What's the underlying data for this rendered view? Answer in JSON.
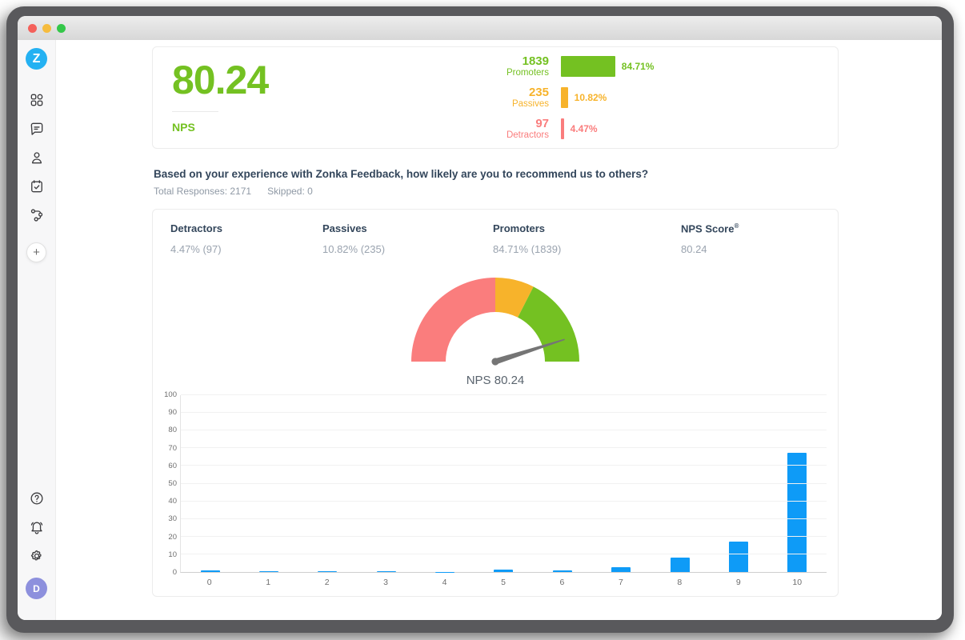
{
  "window": {
    "traffic_lights": {
      "close": "#f4605a",
      "minimize": "#f6bc3e",
      "zoom": "#34c749"
    }
  },
  "sidebar": {
    "logo_letter": "Z",
    "logo_color": "#24b1f2",
    "icons": [
      "apps-icon",
      "feedback-chat-icon",
      "contacts-icon",
      "surveys-icon",
      "workflow-icon",
      "add-icon",
      "help-icon",
      "notifications-icon",
      "settings-icon"
    ],
    "add_label": "+",
    "avatar_initial": "D",
    "avatar_color": "#8d90dd"
  },
  "summary_card": {
    "score": "80.24",
    "score_label": "NPS",
    "score_color": "#74c122",
    "distribution": [
      {
        "count": "1839",
        "label": "Promoters",
        "percent": "84.71%",
        "bar_pct": 84.71,
        "color": "#74c122"
      },
      {
        "count": "235",
        "label": "Passives",
        "percent": "10.82%",
        "bar_pct": 10.82,
        "color": "#f7b32b"
      },
      {
        "count": "97",
        "label": "Detractors",
        "percent": "4.47%",
        "bar_pct": 4.47,
        "color": "#fa7d7d"
      }
    ]
  },
  "question": {
    "text": "Based on your experience with Zonka Feedback, how likely are you to recommend us to others?",
    "total_responses": "Total Responses: 2171",
    "skipped": "Skipped: 0"
  },
  "report_card": {
    "stats": [
      {
        "label": "Detractors",
        "value": "4.47% (97)"
      },
      {
        "label": "Passives",
        "value": "10.82% (235)"
      },
      {
        "label": "Promoters",
        "value": "84.71% (1839)"
      },
      {
        "label": "NPS Score",
        "sup": "®",
        "value": "80.24"
      }
    ],
    "gauge": {
      "label": "NPS 80.24",
      "value": 80.24,
      "min": -100,
      "max": 100,
      "segments": [
        {
          "name": "detractors",
          "from": -100,
          "to": 0,
          "color": "#fa7d7d"
        },
        {
          "name": "passives",
          "from": 0,
          "to": 30,
          "color": "#f7b32b"
        },
        {
          "name": "promoters",
          "from": 30,
          "to": 100,
          "color": "#74c122"
        }
      ],
      "needle_color": "#757575"
    }
  },
  "chart_data": {
    "type": "bar",
    "title": "",
    "xlabel": "",
    "ylabel": "",
    "categories": [
      "0",
      "1",
      "2",
      "3",
      "4",
      "5",
      "6",
      "7",
      "8",
      "9",
      "10"
    ],
    "values": [
      0.9,
      0.3,
      0.55,
      0.6,
      0.15,
      1.25,
      0.8,
      2.6,
      8.2,
      17.2,
      67.5
    ],
    "ylim": [
      0,
      100
    ],
    "yticks": [
      0,
      10,
      20,
      30,
      40,
      50,
      60,
      70,
      80,
      90,
      100
    ],
    "bar_color": "#0e9bf7",
    "grid": true,
    "legend": null
  }
}
